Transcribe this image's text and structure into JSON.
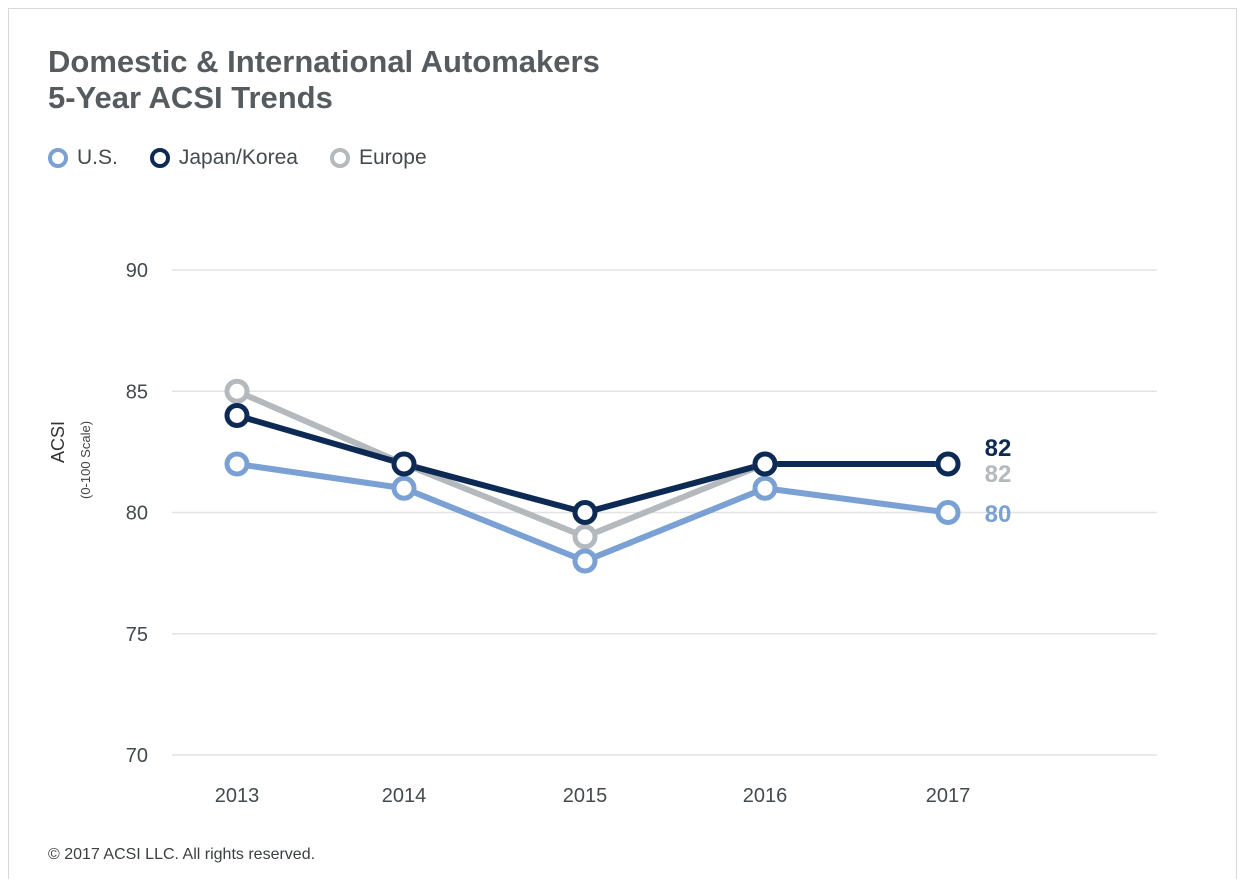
{
  "chart_data": {
    "type": "line",
    "title": [
      "Domestic & International Automakers",
      "5-Year ACSI Trends"
    ],
    "ylabel": "ACSI",
    "ylabel_sub": "(0-100 Scale)",
    "x": [
      "2013",
      "2014",
      "2015",
      "2016",
      "2017"
    ],
    "ylim": [
      70,
      90
    ],
    "yticks": [
      70,
      75,
      80,
      85,
      90
    ],
    "grid": true,
    "legend_position": "top-left",
    "series": [
      {
        "name": "Europe",
        "color": "#b4b9bd",
        "values": [
          85,
          82,
          79,
          82,
          82
        ],
        "end_label": "82"
      },
      {
        "name": "U.S.",
        "color": "#7aa0d4",
        "values": [
          82,
          81,
          78,
          81,
          80
        ],
        "end_label": "80"
      },
      {
        "name": "Japan/Korea",
        "color": "#0d2a55",
        "values": [
          84,
          82,
          80,
          82,
          82
        ],
        "end_label": "82"
      }
    ]
  },
  "legend": [
    {
      "label": "U.S.",
      "color": "#7aa0d4"
    },
    {
      "label": "Japan/Korea",
      "color": "#0d2a55"
    },
    {
      "label": "Europe",
      "color": "#b4b9bd"
    }
  ],
  "footer": "© 2017 ACSI LLC. All rights reserved."
}
